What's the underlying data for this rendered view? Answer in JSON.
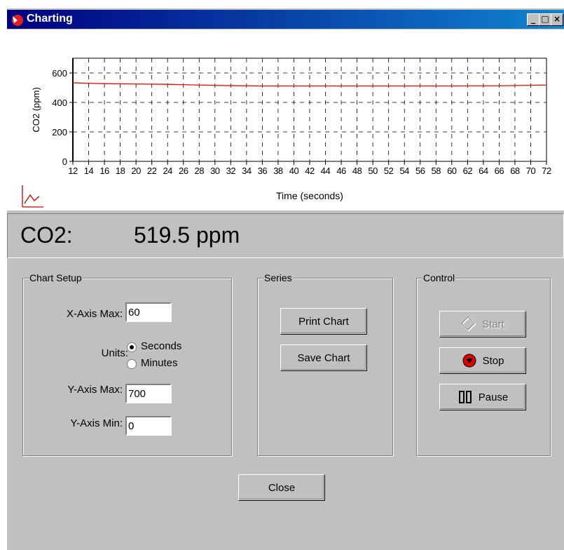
{
  "window": {
    "title": "Charting"
  },
  "chart_data": {
    "type": "line",
    "y_label": "CO2 (ppm)",
    "x_label": "Time (seconds)",
    "xlim": [
      12,
      72
    ],
    "xticks": [
      12,
      14,
      16,
      18,
      20,
      22,
      24,
      26,
      28,
      30,
      32,
      34,
      36,
      38,
      40,
      42,
      44,
      46,
      48,
      50,
      52,
      54,
      56,
      58,
      60,
      62,
      64,
      66,
      68,
      70,
      72
    ],
    "ylim": [
      0,
      700
    ],
    "yticks": [
      0,
      200,
      400,
      600
    ],
    "grid": true,
    "x": [
      12,
      16,
      20,
      24,
      28,
      32,
      36,
      40,
      50,
      60,
      66,
      72
    ],
    "series": [
      {
        "color": "#ff0000",
        "values": [
          533,
          527,
          525,
          523,
          518,
          514,
          512,
          512,
          512,
          512,
          513,
          518
        ]
      }
    ]
  },
  "readout": {
    "label": "CO2:",
    "value": "519.5 ppm"
  },
  "chart_setup": {
    "title": "Chart Setup",
    "x_axis_max_label": "X-Axis Max:",
    "x_axis_max": "60",
    "units_label": "Units:",
    "units": [
      "Seconds",
      "Minutes"
    ],
    "units_selected": 0,
    "y_axis_max_label": "Y-Axis Max:",
    "y_axis_max": "700",
    "y_axis_min_label": "Y-Axis Min:",
    "y_axis_min": "0"
  },
  "series_group": {
    "title": "Series",
    "buttons": [
      "Print Chart",
      "Save Chart"
    ]
  },
  "control": {
    "title": "Control",
    "buttons": [
      "Start",
      "Stop",
      "Pause"
    ],
    "enabled": [
      false,
      true,
      true
    ]
  },
  "close": "Close"
}
